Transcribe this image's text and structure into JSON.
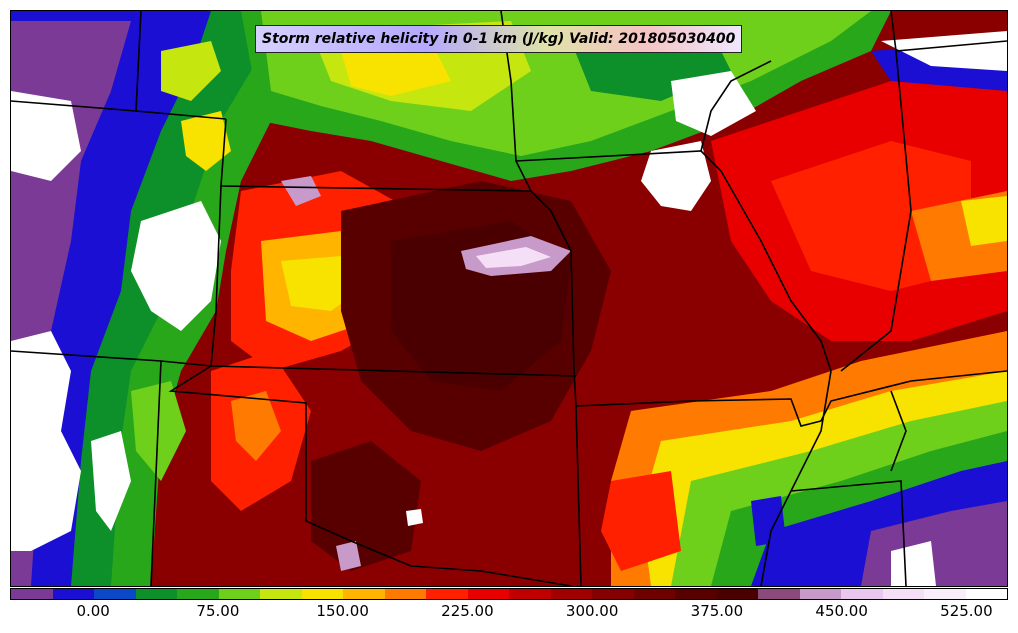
{
  "title": "Storm relative helicity in 0-1 km (J/kg) Valid: 201805030400",
  "colorbar": {
    "colors": [
      "#7b3a96",
      "#1a0fd2",
      "#0a48c8",
      "#0d8f2a",
      "#29a71a",
      "#6fd01c",
      "#c6e60f",
      "#f7e200",
      "#ffb400",
      "#ff7a00",
      "#ff2000",
      "#e80000",
      "#c00000",
      "#a00000",
      "#850000",
      "#6e0000",
      "#580000",
      "#4a0000",
      "#8a4a7a",
      "#c79ac9",
      "#e8c8ec",
      "#f4dff6",
      "#fbeefb",
      "#ffffff"
    ],
    "tick_labels": [
      {
        "label": "0.00",
        "value": 0
      },
      {
        "label": "75.00",
        "value": 75
      },
      {
        "label": "150.00",
        "value": 150
      },
      {
        "label": "225.00",
        "value": 225
      },
      {
        "label": "300.00",
        "value": 300
      },
      {
        "label": "375.00",
        "value": 375
      },
      {
        "label": "450.00",
        "value": 450
      },
      {
        "label": "525.00",
        "value": 525
      }
    ],
    "range": [
      -50,
      550
    ]
  },
  "map": {
    "variable": "storm-relative-helicity-0-1km",
    "region": "central-united-states",
    "colors": {
      "background": "#7a0000",
      "border_lines": "#000000"
    }
  }
}
